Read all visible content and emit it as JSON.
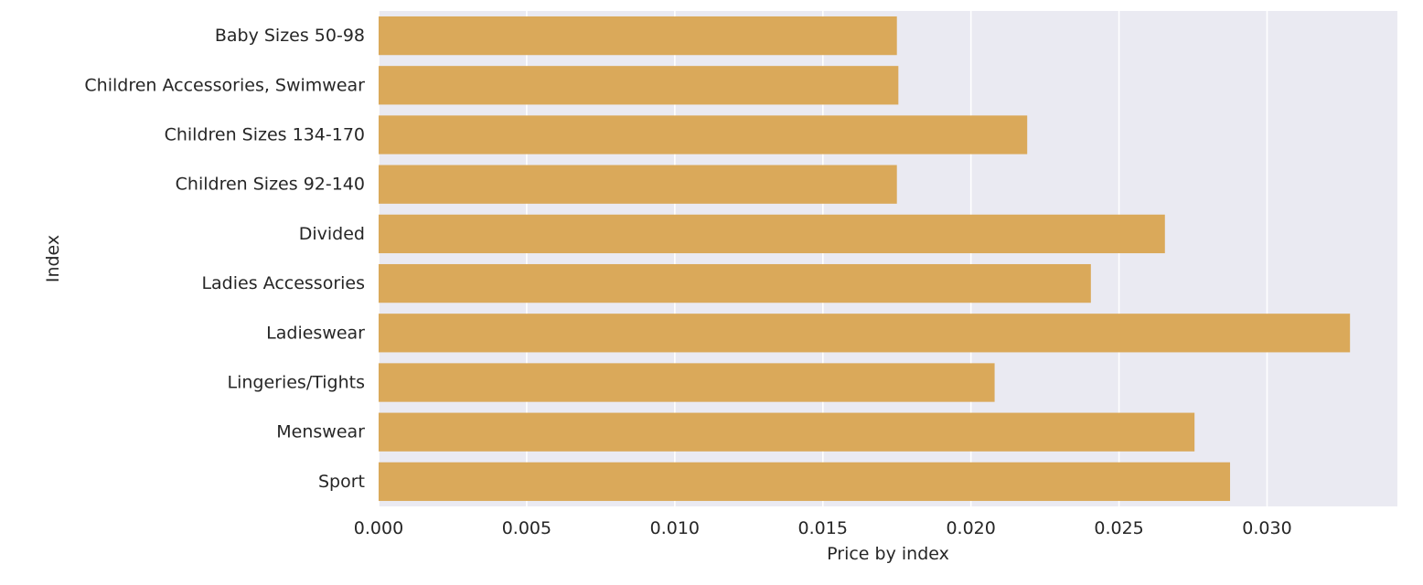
{
  "chart_data": {
    "type": "bar",
    "orientation": "horizontal",
    "categories": [
      "Baby Sizes 50-98",
      "Children Accessories, Swimwear",
      "Children Sizes 134-170",
      "Children Sizes 92-140",
      "Divided",
      "Ladies Accessories",
      "Ladieswear",
      "Lingeries/Tights",
      "Menswear",
      "Sport"
    ],
    "values": [
      0.0175,
      0.01755,
      0.0219,
      0.0175,
      0.02655,
      0.02405,
      0.0328,
      0.0208,
      0.02755,
      0.02875
    ],
    "xlabel": "Price by index",
    "ylabel": "Index",
    "xlim": [
      0.0,
      0.0344
    ],
    "xticks": [
      0.0,
      0.005,
      0.01,
      0.015,
      0.02,
      0.025,
      0.03
    ],
    "xtick_labels": [
      "0.000",
      "0.005",
      "0.010",
      "0.015",
      "0.020",
      "0.025",
      "0.030"
    ],
    "grid": true,
    "legend": "none",
    "bar_color": "#DAA95A",
    "background_color": "#EAEAF2",
    "grid_color": "#FFFFFF"
  }
}
